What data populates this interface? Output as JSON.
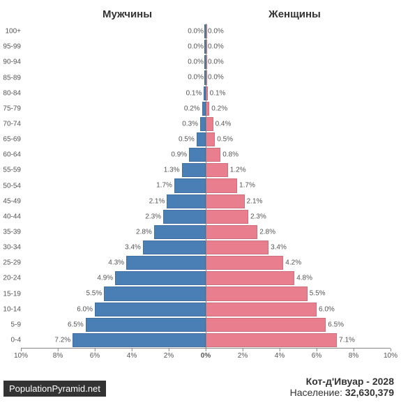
{
  "chart": {
    "type": "population-pyramid",
    "background_color": "#ffffff",
    "male_label": "Мужчины",
    "female_label": "Женщины",
    "male_color": "#4a7fb6",
    "female_color": "#e97e8e",
    "text_color": "#555555",
    "axis_color": "#888888",
    "header_fontsize": 15,
    "label_fontsize": 10,
    "x_max_pct": 10,
    "x_ticks": [
      10,
      8,
      6,
      4,
      2,
      0,
      2,
      4,
      6,
      8,
      10
    ],
    "x_tick_labels": [
      "10%",
      "8%",
      "6%",
      "4%",
      "2%",
      "0%",
      "2%",
      "4%",
      "6%",
      "8%",
      "10%"
    ],
    "age_labels": [
      "100+",
      "95-99",
      "90-94",
      "85-89",
      "80-84",
      "75-79",
      "70-74",
      "65-69",
      "60-64",
      "55-59",
      "50-54",
      "45-49",
      "40-44",
      "35-39",
      "30-34",
      "25-29",
      "20-24",
      "15-19",
      "10-14",
      "5-9",
      "0-4"
    ],
    "male_pct": [
      0.0,
      0.0,
      0.0,
      0.0,
      0.1,
      0.2,
      0.3,
      0.5,
      0.9,
      1.3,
      1.7,
      2.1,
      2.3,
      2.8,
      3.4,
      4.3,
      4.9,
      5.5,
      6.0,
      6.5,
      7.2
    ],
    "female_pct": [
      0.0,
      0.0,
      0.0,
      0.0,
      0.1,
      0.2,
      0.4,
      0.5,
      0.8,
      1.2,
      1.7,
      2.1,
      2.3,
      2.8,
      3.4,
      4.2,
      4.8,
      5.5,
      6.0,
      6.5,
      7.1
    ]
  },
  "meta": {
    "country_year": "Кот-д'Ивуар - 2028",
    "population_label": "Население:",
    "population_value": "32,630,379"
  },
  "source": "PopulationPyramid.net"
}
